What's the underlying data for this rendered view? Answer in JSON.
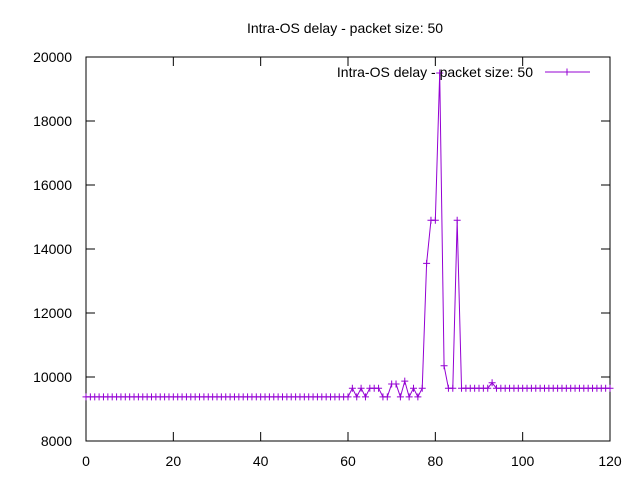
{
  "chart_data": {
    "type": "line",
    "title": "Intra-OS delay - packet size: 50",
    "xlabel": "",
    "ylabel": "",
    "xlim": [
      0,
      120
    ],
    "ylim": [
      8000,
      20000
    ],
    "xticks": [
      0,
      20,
      40,
      60,
      80,
      100,
      120
    ],
    "yticks": [
      8000,
      10000,
      12000,
      14000,
      16000,
      18000,
      20000
    ],
    "grid": false,
    "legend_position": "top-right",
    "colors": {
      "series": "#9400d3",
      "axis": "#000000"
    },
    "series": [
      {
        "name": "Intra-OS delay - packet size: 50",
        "marker": "plus",
        "x": [
          0,
          1,
          2,
          3,
          4,
          5,
          6,
          7,
          8,
          9,
          10,
          11,
          12,
          13,
          14,
          15,
          16,
          17,
          18,
          19,
          20,
          21,
          22,
          23,
          24,
          25,
          26,
          27,
          28,
          29,
          30,
          31,
          32,
          33,
          34,
          35,
          36,
          37,
          38,
          39,
          40,
          41,
          42,
          43,
          44,
          45,
          46,
          47,
          48,
          49,
          50,
          51,
          52,
          53,
          54,
          55,
          56,
          57,
          58,
          59,
          60,
          61,
          62,
          63,
          64,
          65,
          66,
          67,
          68,
          69,
          70,
          71,
          72,
          73,
          74,
          75,
          76,
          77,
          78,
          79,
          80,
          81,
          82,
          83,
          84,
          85,
          86,
          87,
          88,
          89,
          90,
          91,
          92,
          93,
          94,
          95,
          96,
          97,
          98,
          99,
          100,
          101,
          102,
          103,
          104,
          105,
          106,
          107,
          108,
          109,
          110,
          111,
          112,
          113,
          114,
          115,
          116,
          117,
          118,
          119,
          120
        ],
        "y": [
          9380,
          9380,
          9380,
          9380,
          9380,
          9380,
          9380,
          9380,
          9380,
          9380,
          9380,
          9380,
          9380,
          9380,
          9380,
          9380,
          9380,
          9380,
          9380,
          9380,
          9380,
          9380,
          9380,
          9380,
          9380,
          9380,
          9380,
          9380,
          9380,
          9380,
          9380,
          9380,
          9380,
          9380,
          9380,
          9380,
          9380,
          9380,
          9380,
          9380,
          9380,
          9380,
          9380,
          9380,
          9380,
          9380,
          9380,
          9380,
          9380,
          9380,
          9380,
          9380,
          9380,
          9380,
          9380,
          9380,
          9380,
          9380,
          9380,
          9380,
          9380,
          9650,
          9380,
          9650,
          9380,
          9650,
          9650,
          9650,
          9380,
          9380,
          9780,
          9780,
          9380,
          9870,
          9380,
          9650,
          9380,
          9650,
          13550,
          14900,
          14900,
          19500,
          10350,
          9650,
          9650,
          14900,
          9650,
          9650,
          9650,
          9650,
          9650,
          9650,
          9650,
          9820,
          9650,
          9650,
          9650,
          9650,
          9650,
          9650,
          9650,
          9650,
          9650,
          9650,
          9650,
          9650,
          9650,
          9650,
          9650,
          9650,
          9650,
          9650,
          9650,
          9650,
          9650,
          9650,
          9650,
          9650,
          9650,
          9650,
          9650
        ]
      }
    ]
  }
}
